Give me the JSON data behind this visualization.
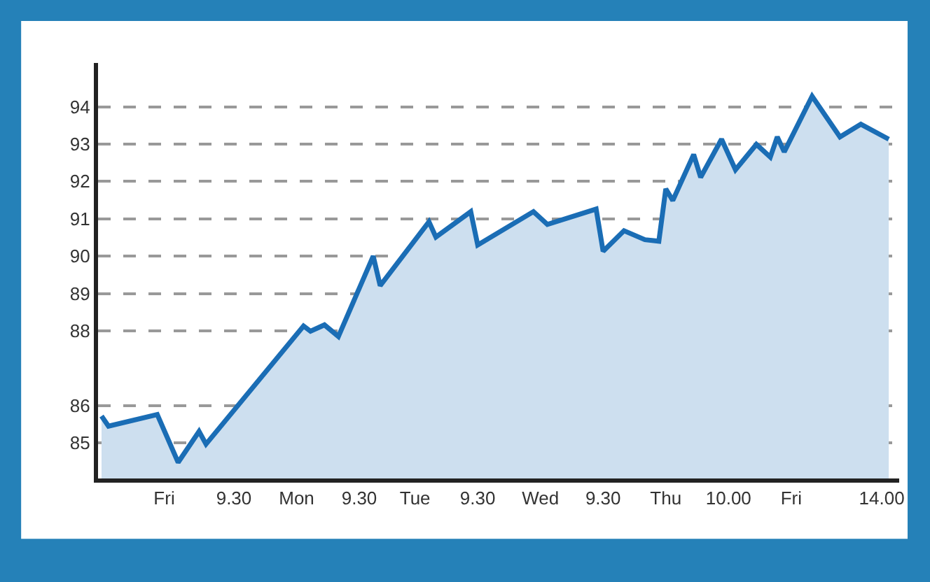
{
  "chart_data": {
    "type": "area",
    "categories": [
      null,
      null,
      null,
      null,
      null,
      null,
      null,
      null,
      null,
      "Fri",
      null,
      null,
      null,
      null,
      null,
      null,
      null,
      null,
      null,
      "9.30",
      null,
      null,
      null,
      null,
      null,
      null,
      null,
      null,
      "Mon",
      null,
      null,
      null,
      null,
      null,
      null,
      null,
      null,
      "9.30",
      null,
      null,
      null,
      null,
      null,
      null,
      null,
      "Tue",
      null,
      null,
      null,
      null,
      null,
      null,
      null,
      null,
      "9.30",
      null,
      null,
      null,
      null,
      null,
      null,
      null,
      null,
      "Wed",
      null,
      null,
      null,
      null,
      null,
      null,
      null,
      null,
      "9.30",
      null,
      null,
      null,
      null,
      null,
      null,
      null,
      null,
      "Thu",
      null,
      null,
      null,
      null,
      null,
      null,
      null,
      null,
      "10.00",
      null,
      null,
      null,
      null,
      null,
      null,
      null,
      null,
      "Fri",
      null,
      null,
      null,
      null,
      null,
      null,
      null,
      null,
      null,
      null,
      null,
      null,
      "14.00",
      null,
      null
    ],
    "series": [
      {
        "color": "#1a6db5",
        "values": [
          85.72,
          85.45,
          null,
          null,
          null,
          null,
          null,
          null,
          85.76,
          null,
          null,
          84.48,
          null,
          null,
          85.31,
          84.97,
          null,
          null,
          null,
          null,
          null,
          null,
          null,
          null,
          null,
          null,
          null,
          null,
          null,
          88.13,
          87.99,
          null,
          88.16,
          null,
          87.85,
          null,
          null,
          null,
          null,
          90.0,
          89.21,
          null,
          null,
          null,
          null,
          null,
          null,
          90.92,
          90.51,
          null,
          null,
          null,
          null,
          91.19,
          90.3,
          null,
          null,
          null,
          null,
          null,
          null,
          null,
          91.19,
          null,
          90.85,
          null,
          null,
          null,
          null,
          null,
          null,
          91.26,
          90.13,
          null,
          null,
          90.68,
          null,
          null,
          90.44,
          null,
          90.4,
          91.8,
          91.49,
          null,
          null,
          92.72,
          92.11,
          null,
          null,
          93.13,
          null,
          92.31,
          null,
          null,
          92.99,
          null,
          92.65,
          93.19,
          92.79,
          null,
          null,
          null,
          94.28,
          null,
          null,
          null,
          93.19,
          null,
          null,
          93.53,
          null,
          null,
          null,
          93.13,
          null
        ]
      }
    ],
    "ylim": [
      84.05,
      95.17
    ],
    "yticks": [
      85,
      86,
      88,
      89,
      90,
      91,
      92,
      93,
      94
    ],
    "grid": "y",
    "line_style": "solid",
    "marker": "none"
  }
}
